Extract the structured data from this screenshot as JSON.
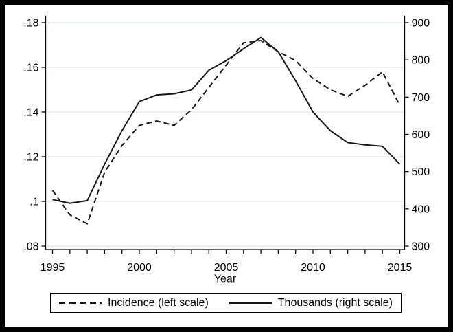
{
  "figure": {
    "frame_color": "#000000",
    "background": "#ffffff"
  },
  "chart_data": {
    "type": "line",
    "title": "",
    "xlabel": "Year",
    "grid": true,
    "legend_position": "bottom",
    "colors": {
      "series": "#161616",
      "grid": "#e3ecf3",
      "axis": "#000000",
      "text": "#000000"
    },
    "x": [
      1995,
      1996,
      1997,
      1998,
      1999,
      2000,
      2001,
      2002,
      2003,
      2004,
      2005,
      2006,
      2007,
      2008,
      2009,
      2010,
      2011,
      2012,
      2013,
      2014,
      2015
    ],
    "x_ticks": [
      1995,
      2000,
      2005,
      2010,
      2015
    ],
    "x_tick_labels": [
      "1995",
      "2000",
      "2005",
      "2010",
      "2015"
    ],
    "left_axis": {
      "range": [
        0.08,
        0.18
      ],
      "values": [
        0.18,
        0.16,
        0.14,
        0.12,
        0.1,
        0.08
      ],
      "ticks": [
        ".18",
        ".16",
        ".14",
        ".12",
        ".1",
        ".08"
      ]
    },
    "right_axis": {
      "range": [
        300,
        900
      ],
      "values": [
        900,
        800,
        700,
        600,
        500,
        400,
        300
      ],
      "ticks": [
        "900",
        "800",
        "700",
        "600",
        "500",
        "400",
        "300"
      ]
    },
    "series": [
      {
        "name": "Incidence (left scale)",
        "axis": "left",
        "style": "dashed",
        "values": [
          0.105,
          0.094,
          0.09,
          0.113,
          0.125,
          0.134,
          0.136,
          0.134,
          0.141,
          0.151,
          0.161,
          0.171,
          0.172,
          0.167,
          0.163,
          0.155,
          0.15,
          0.147,
          0.152,
          0.158,
          0.143
        ]
      },
      {
        "name": "Thousands (right scale)",
        "axis": "right",
        "style": "solid",
        "values": [
          425,
          415,
          422,
          520,
          610,
          688,
          706,
          709,
          719,
          772,
          798,
          830,
          860,
          822,
          744,
          660,
          610,
          578,
          572,
          568,
          520
        ]
      }
    ]
  },
  "legend": {
    "items": [
      {
        "label": "Incidence (left scale)",
        "style": "dashed"
      },
      {
        "label": "Thousands (right scale)",
        "style": "solid"
      }
    ]
  }
}
